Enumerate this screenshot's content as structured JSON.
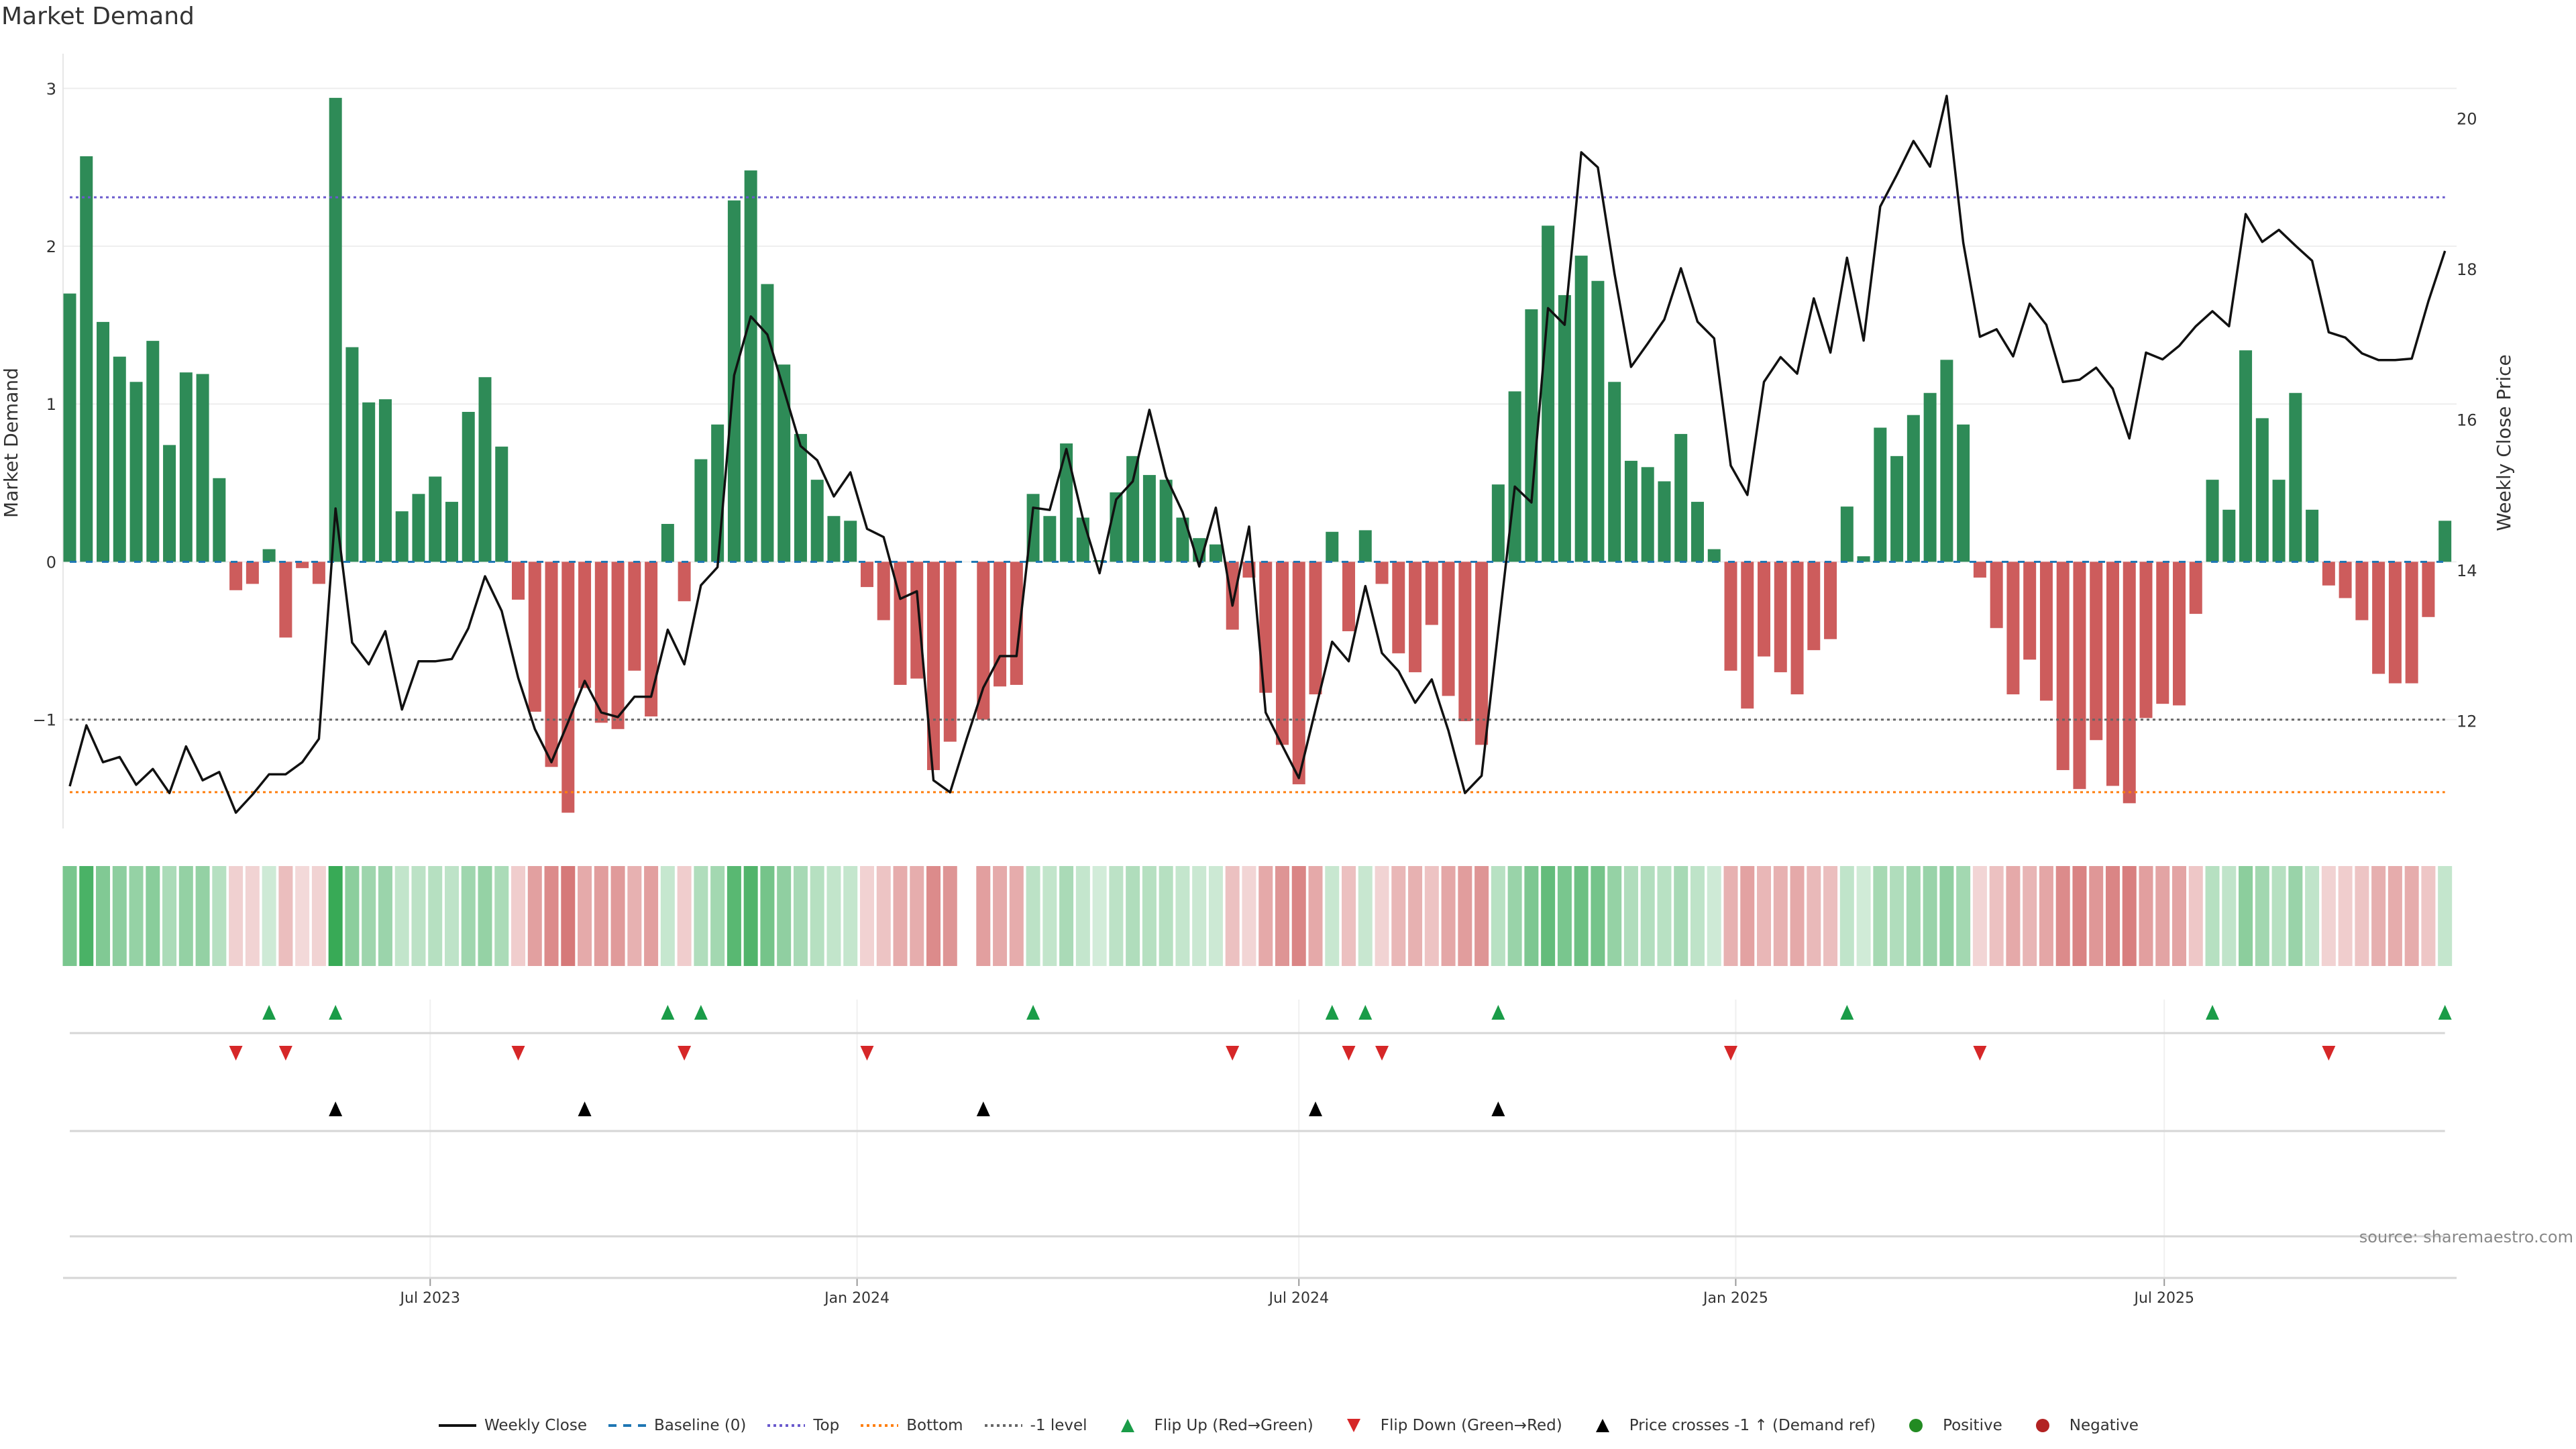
{
  "title": "Market Demand",
  "source": "source: sharemaestro.com",
  "colors": {
    "positive_bar": "#2e8b57",
    "negative_bar": "#cd5c5c",
    "price_line": "#111111",
    "baseline": "#1f77b4",
    "top": "#6a5acd",
    "bottom": "#ff7f0e",
    "minus1": "#666666",
    "flip_up": "#1a9c48",
    "flip_down": "#d62728",
    "price_cross": "#000000",
    "positive": "#228b22",
    "negative": "#b22222"
  },
  "chart_data": {
    "type": "bar",
    "title": "Market Demand",
    "ylabel": "Market Demand",
    "y2label": "Weekly Close Price",
    "interval": "weekly",
    "start_date": "2023-01-30",
    "ylim": [
      -1.69,
      3.22
    ],
    "y2lim": [
      10.57,
      20.86
    ],
    "yticks": [
      {
        "v": 3,
        "label": "3"
      },
      {
        "v": 2,
        "label": "2"
      },
      {
        "v": 1,
        "label": "1"
      },
      {
        "v": 0,
        "label": "0"
      },
      {
        "v": -1,
        "label": "−1"
      }
    ],
    "y2ticks": [
      {
        "v": 20,
        "label": "20"
      },
      {
        "v": 18,
        "label": "18"
      },
      {
        "v": 16,
        "label": "16"
      },
      {
        "v": 14,
        "label": "14"
      },
      {
        "v": 12,
        "label": "12"
      }
    ],
    "xticks": [
      {
        "label": "Jul 2023",
        "week": 21.7
      },
      {
        "label": "Jan 2024",
        "week": 47.4
      },
      {
        "label": "Jul 2024",
        "week": 74.0
      },
      {
        "label": "Jan 2025",
        "week": 100.3
      },
      {
        "label": "Jul 2025",
        "week": 126.1
      }
    ],
    "reference_lines": {
      "baseline": 0,
      "top": 2.31,
      "bottom": -1.46,
      "minus1": -1
    },
    "demand": [
      1.7,
      2.57,
      1.52,
      1.3,
      1.14,
      1.4,
      0.74,
      1.2,
      1.19,
      0.53,
      -0.18,
      -0.14,
      0.08,
      -0.48,
      -0.04,
      -0.14,
      2.94,
      1.36,
      1.01,
      1.03,
      0.32,
      0.43,
      0.54,
      0.38,
      0.95,
      1.17,
      0.73,
      -0.24,
      -0.95,
      -1.3,
      -1.59,
      -0.8,
      -1.02,
      -1.06,
      -0.69,
      -0.98,
      0.24,
      -0.25,
      0.65,
      0.87,
      2.29,
      2.48,
      1.76,
      1.25,
      0.81,
      0.52,
      0.29,
      0.26,
      -0.16,
      -0.37,
      -0.78,
      -0.74,
      -1.32,
      -1.14,
      0,
      -1.0,
      -0.79,
      -0.78,
      0.43,
      0.29,
      0.75,
      0.28,
      0.01,
      0.44,
      0.67,
      0.55,
      0.52,
      0.28,
      0.15,
      0.11,
      -0.43,
      -0.1,
      -0.83,
      -1.16,
      -1.41,
      -0.84,
      0.19,
      -0.44,
      0.2,
      -0.14,
      -0.58,
      -0.7,
      -0.4,
      -0.85,
      -1.01,
      -1.16,
      0.49,
      1.08,
      1.6,
      2.13,
      1.69,
      1.94,
      1.78,
      1.14,
      0.64,
      0.6,
      0.51,
      0.81,
      0.38,
      0.08,
      -0.69,
      -0.93,
      -0.6,
      -0.7,
      -0.84,
      -0.56,
      -0.49,
      0.35,
      0.035,
      0.85,
      0.67,
      0.93,
      1.07,
      1.28,
      0.87,
      -0.1,
      -0.42,
      -0.84,
      -0.62,
      -0.88,
      -1.32,
      -1.44,
      -1.13,
      -1.42,
      -1.53,
      -0.99,
      -0.9,
      -0.91,
      -0.33,
      0.52,
      0.33,
      1.34,
      0.91,
      0.52,
      1.07,
      0.33,
      -0.15,
      -0.23,
      -0.37,
      -0.71,
      -0.77,
      -0.77,
      -0.35,
      0.26
    ],
    "weekly_close": [
      11.13,
      11.94,
      11.45,
      11.52,
      11.15,
      11.36,
      11.04,
      11.66,
      11.21,
      11.32,
      10.78,
      11.02,
      11.29,
      11.29,
      11.45,
      11.76,
      14.82,
      13.04,
      12.75,
      13.19,
      12.15,
      12.79,
      12.79,
      12.82,
      13.23,
      13.92,
      13.46,
      12.57,
      11.89,
      11.45,
      11.98,
      12.53,
      12.11,
      12.05,
      12.32,
      12.32,
      13.21,
      12.75,
      13.8,
      14.04,
      16.59,
      17.37,
      17.13,
      16.39,
      15.65,
      15.46,
      14.98,
      15.3,
      14.55,
      14.44,
      13.62,
      13.72,
      11.21,
      11.05,
      11.76,
      12.44,
      12.86,
      12.86,
      14.83,
      14.8,
      15.61,
      14.68,
      13.96,
      14.94,
      15.18,
      16.13,
      15.24,
      14.77,
      14.05,
      14.83,
      13.53,
      14.58,
      12.11,
      11.67,
      11.24,
      12.15,
      13.05,
      12.79,
      13.79,
      12.9,
      12.66,
      12.24,
      12.55,
      11.87,
      11.04,
      11.27,
      13.2,
      15.11,
      14.9,
      17.48,
      17.26,
      19.55,
      19.35,
      17.94,
      16.7,
      17.01,
      17.33,
      18.01,
      17.3,
      17.08,
      15.39,
      15.0,
      16.5,
      16.83,
      16.61,
      17.61,
      16.89,
      18.15,
      17.05,
      18.83,
      19.25,
      19.7,
      19.36,
      20.3,
      18.35,
      17.1,
      17.2,
      16.84,
      17.54,
      17.26,
      16.5,
      16.53,
      16.69,
      16.41,
      15.75,
      16.89,
      16.8,
      16.98,
      17.24,
      17.44,
      17.24,
      18.73,
      18.36,
      18.52,
      18.31,
      18.11,
      17.16,
      17.09,
      16.88,
      16.79,
      16.79,
      16.81,
      17.57,
      18.24
    ],
    "flip_up_weeks": [
      12,
      16,
      36,
      38,
      58,
      76,
      78,
      86,
      107,
      129,
      143
    ],
    "flip_down_weeks": [
      10,
      13,
      27,
      37,
      48,
      70,
      77,
      79,
      100,
      115,
      136
    ],
    "price_cross_weeks": [
      16,
      31,
      55,
      75,
      86
    ],
    "legend_position": "bottom",
    "legend": [
      {
        "key": "line",
        "label": "Weekly Close"
      },
      {
        "key": "baseline",
        "label": "Baseline (0)"
      },
      {
        "key": "top",
        "label": "Top"
      },
      {
        "key": "bottom",
        "label": "Bottom"
      },
      {
        "key": "minus1",
        "label": "-1 level"
      },
      {
        "key": "flip_up",
        "label": "Flip Up (Red→Green)"
      },
      {
        "key": "flip_down",
        "label": "Flip Down (Green→Red)"
      },
      {
        "key": "price_cross",
        "label": "Price crosses -1 ↑ (Demand ref)"
      },
      {
        "key": "positive",
        "label": "Positive"
      },
      {
        "key": "negative",
        "label": "Negative"
      }
    ]
  }
}
